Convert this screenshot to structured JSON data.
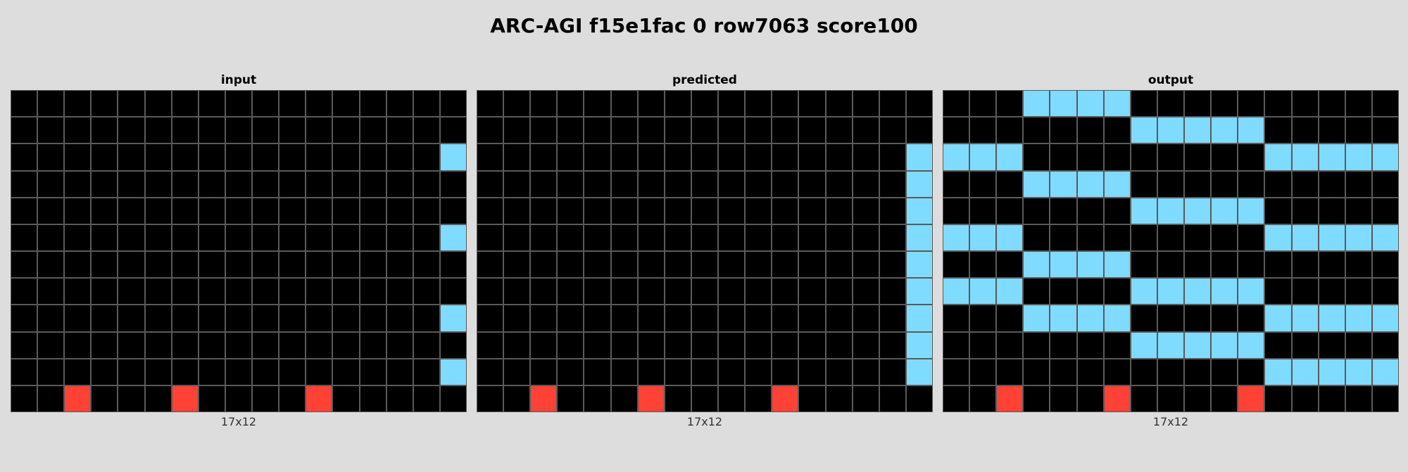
{
  "title": "ARC-AGI f15e1fac 0 row7063 score100",
  "colors": {
    "0": "#000000",
    "2": "#ff4136",
    "8": "#7fdbff",
    "gridline": "#5a5a5a",
    "background": "#dddddd"
  },
  "panels": [
    {
      "label": "input",
      "caption": "17x12",
      "grid": [
        [
          0,
          0,
          0,
          0,
          0,
          0,
          0,
          0,
          0,
          0,
          0,
          0,
          0,
          0,
          0,
          0,
          0
        ],
        [
          0,
          0,
          0,
          0,
          0,
          0,
          0,
          0,
          0,
          0,
          0,
          0,
          0,
          0,
          0,
          0,
          0
        ],
        [
          0,
          0,
          0,
          0,
          0,
          0,
          0,
          0,
          0,
          0,
          0,
          0,
          0,
          0,
          0,
          0,
          8
        ],
        [
          0,
          0,
          0,
          0,
          0,
          0,
          0,
          0,
          0,
          0,
          0,
          0,
          0,
          0,
          0,
          0,
          0
        ],
        [
          0,
          0,
          0,
          0,
          0,
          0,
          0,
          0,
          0,
          0,
          0,
          0,
          0,
          0,
          0,
          0,
          0
        ],
        [
          0,
          0,
          0,
          0,
          0,
          0,
          0,
          0,
          0,
          0,
          0,
          0,
          0,
          0,
          0,
          0,
          8
        ],
        [
          0,
          0,
          0,
          0,
          0,
          0,
          0,
          0,
          0,
          0,
          0,
          0,
          0,
          0,
          0,
          0,
          0
        ],
        [
          0,
          0,
          0,
          0,
          0,
          0,
          0,
          0,
          0,
          0,
          0,
          0,
          0,
          0,
          0,
          0,
          0
        ],
        [
          0,
          0,
          0,
          0,
          0,
          0,
          0,
          0,
          0,
          0,
          0,
          0,
          0,
          0,
          0,
          0,
          8
        ],
        [
          0,
          0,
          0,
          0,
          0,
          0,
          0,
          0,
          0,
          0,
          0,
          0,
          0,
          0,
          0,
          0,
          0
        ],
        [
          0,
          0,
          0,
          0,
          0,
          0,
          0,
          0,
          0,
          0,
          0,
          0,
          0,
          0,
          0,
          0,
          8
        ],
        [
          0,
          0,
          2,
          0,
          0,
          0,
          2,
          0,
          0,
          0,
          0,
          2,
          0,
          0,
          0,
          0,
          0
        ]
      ]
    },
    {
      "label": "predicted",
      "caption": "17x12",
      "grid": [
        [
          0,
          0,
          0,
          0,
          0,
          0,
          0,
          0,
          0,
          0,
          0,
          0,
          0,
          0,
          0,
          0,
          0
        ],
        [
          0,
          0,
          0,
          0,
          0,
          0,
          0,
          0,
          0,
          0,
          0,
          0,
          0,
          0,
          0,
          0,
          0
        ],
        [
          0,
          0,
          0,
          0,
          0,
          0,
          0,
          0,
          0,
          0,
          0,
          0,
          0,
          0,
          0,
          0,
          8
        ],
        [
          0,
          0,
          0,
          0,
          0,
          0,
          0,
          0,
          0,
          0,
          0,
          0,
          0,
          0,
          0,
          0,
          8
        ],
        [
          0,
          0,
          0,
          0,
          0,
          0,
          0,
          0,
          0,
          0,
          0,
          0,
          0,
          0,
          0,
          0,
          8
        ],
        [
          0,
          0,
          0,
          0,
          0,
          0,
          0,
          0,
          0,
          0,
          0,
          0,
          0,
          0,
          0,
          0,
          8
        ],
        [
          0,
          0,
          0,
          0,
          0,
          0,
          0,
          0,
          0,
          0,
          0,
          0,
          0,
          0,
          0,
          0,
          8
        ],
        [
          0,
          0,
          0,
          0,
          0,
          0,
          0,
          0,
          0,
          0,
          0,
          0,
          0,
          0,
          0,
          0,
          8
        ],
        [
          0,
          0,
          0,
          0,
          0,
          0,
          0,
          0,
          0,
          0,
          0,
          0,
          0,
          0,
          0,
          0,
          8
        ],
        [
          0,
          0,
          0,
          0,
          0,
          0,
          0,
          0,
          0,
          0,
          0,
          0,
          0,
          0,
          0,
          0,
          8
        ],
        [
          0,
          0,
          0,
          0,
          0,
          0,
          0,
          0,
          0,
          0,
          0,
          0,
          0,
          0,
          0,
          0,
          8
        ],
        [
          0,
          0,
          2,
          0,
          0,
          0,
          2,
          0,
          0,
          0,
          0,
          2,
          0,
          0,
          0,
          0,
          0
        ]
      ]
    },
    {
      "label": "output",
      "caption": "17x12",
      "grid": [
        [
          0,
          0,
          0,
          8,
          8,
          8,
          8,
          0,
          0,
          0,
          0,
          0,
          0,
          0,
          0,
          0,
          0
        ],
        [
          0,
          0,
          0,
          0,
          0,
          0,
          0,
          8,
          8,
          8,
          8,
          8,
          0,
          0,
          0,
          0,
          0
        ],
        [
          8,
          8,
          8,
          0,
          0,
          0,
          0,
          0,
          0,
          0,
          0,
          0,
          8,
          8,
          8,
          8,
          8
        ],
        [
          0,
          0,
          0,
          8,
          8,
          8,
          8,
          0,
          0,
          0,
          0,
          0,
          0,
          0,
          0,
          0,
          0
        ],
        [
          0,
          0,
          0,
          0,
          0,
          0,
          0,
          8,
          8,
          8,
          8,
          8,
          0,
          0,
          0,
          0,
          0
        ],
        [
          8,
          8,
          8,
          0,
          0,
          0,
          0,
          0,
          0,
          0,
          0,
          0,
          8,
          8,
          8,
          8,
          8
        ],
        [
          0,
          0,
          0,
          8,
          8,
          8,
          8,
          0,
          0,
          0,
          0,
          0,
          0,
          0,
          0,
          0,
          0
        ],
        [
          8,
          8,
          8,
          0,
          0,
          0,
          0,
          8,
          8,
          8,
          8,
          8,
          0,
          0,
          0,
          0,
          0
        ],
        [
          0,
          0,
          0,
          8,
          8,
          8,
          8,
          0,
          0,
          0,
          0,
          0,
          8,
          8,
          8,
          8,
          8
        ],
        [
          0,
          0,
          0,
          0,
          0,
          0,
          0,
          8,
          8,
          8,
          8,
          8,
          0,
          0,
          0,
          0,
          0
        ],
        [
          0,
          0,
          0,
          0,
          0,
          0,
          0,
          0,
          0,
          0,
          0,
          0,
          8,
          8,
          8,
          8,
          8
        ],
        [
          0,
          0,
          2,
          0,
          0,
          0,
          2,
          0,
          0,
          0,
          0,
          2,
          0,
          0,
          0,
          0,
          0
        ]
      ]
    }
  ]
}
